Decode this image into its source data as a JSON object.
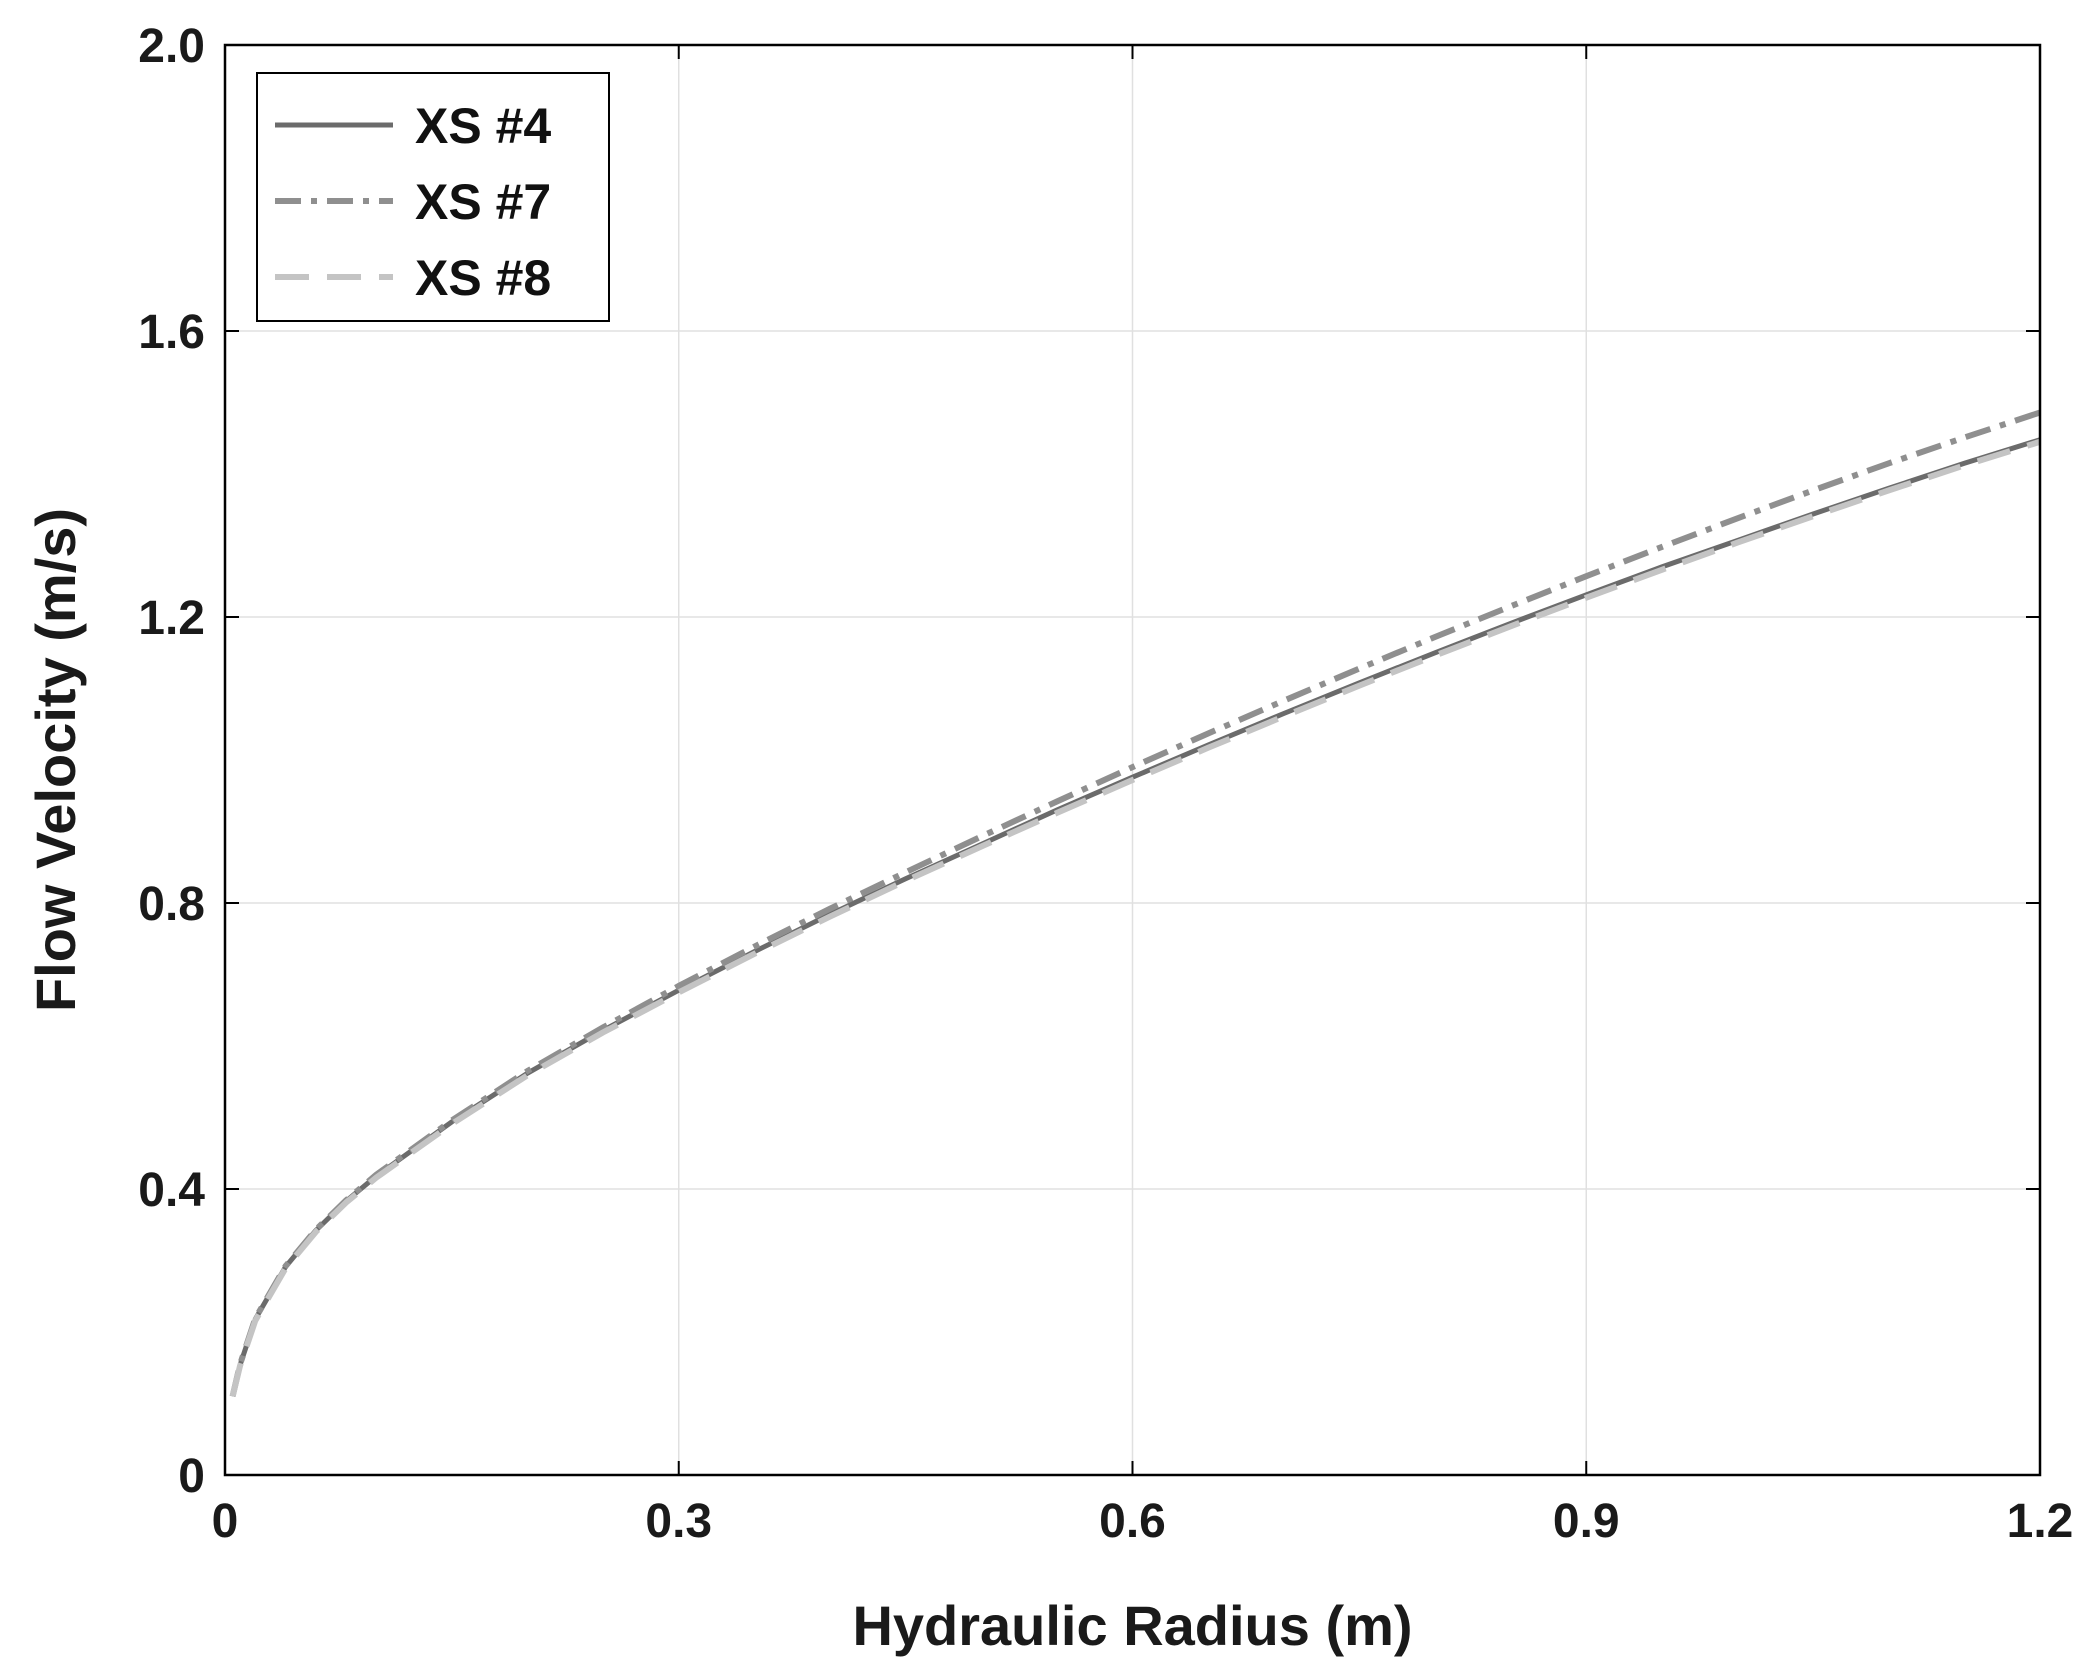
{
  "chart_data": {
    "type": "line",
    "title": "",
    "xlabel": "Hydraulic Radius (m)",
    "ylabel": "Flow Velocity (m/s)",
    "xlim": [
      0,
      1.2
    ],
    "ylim": [
      0,
      2.0
    ],
    "xticks": [
      0,
      0.3,
      0.6,
      0.9,
      1.2
    ],
    "xtick_labels": [
      "0",
      "0.3",
      "0.6",
      "0.9",
      "1.2"
    ],
    "yticks": [
      0,
      0.4,
      0.8,
      1.2,
      1.6,
      2.0
    ],
    "ytick_labels": [
      "0",
      "0.4",
      "0.8",
      "1.2",
      "1.6",
      "2.0"
    ],
    "grid": true,
    "legend_position": "top-left",
    "x": [
      0.005,
      0.01,
      0.02,
      0.04,
      0.06,
      0.08,
      0.1,
      0.15,
      0.2,
      0.25,
      0.3,
      0.35,
      0.4,
      0.45,
      0.5,
      0.55,
      0.6,
      0.65,
      0.7,
      0.75,
      0.8,
      0.85,
      0.9,
      0.95,
      1.0,
      1.05,
      1.1,
      1.15,
      1.2
    ],
    "series": [
      {
        "name": "XS #4",
        "style": "solid",
        "color": "#6b6b6b",
        "values": [
          0.11,
          0.154,
          0.218,
          0.291,
          0.342,
          0.383,
          0.418,
          0.494,
          0.562,
          0.622,
          0.678,
          0.732,
          0.784,
          0.834,
          0.882,
          0.93,
          0.976,
          1.021,
          1.065,
          1.108,
          1.15,
          1.191,
          1.231,
          1.27,
          1.307,
          1.344,
          1.38,
          1.415,
          1.448
        ]
      },
      {
        "name": "XS #7",
        "style": "dash-dot",
        "color": "#8f8f8f",
        "values": [
          0.11,
          0.155,
          0.219,
          0.292,
          0.343,
          0.384,
          0.42,
          0.496,
          0.565,
          0.626,
          0.684,
          0.739,
          0.792,
          0.843,
          0.893,
          0.942,
          0.99,
          1.037,
          1.083,
          1.128,
          1.172,
          1.215,
          1.257,
          1.298,
          1.338,
          1.377,
          1.415,
          1.451,
          1.486
        ]
      },
      {
        "name": "XS #8",
        "style": "dashed",
        "color": "#c4c4c4",
        "values": [
          0.11,
          0.153,
          0.216,
          0.289,
          0.34,
          0.381,
          0.416,
          0.491,
          0.559,
          0.619,
          0.675,
          0.729,
          0.781,
          0.831,
          0.879,
          0.926,
          0.972,
          1.017,
          1.061,
          1.104,
          1.146,
          1.187,
          1.227,
          1.266,
          1.304,
          1.341,
          1.377,
          1.412,
          1.445
        ]
      }
    ]
  },
  "colors": {
    "axis": "#000000",
    "grid": "#e0e0e0",
    "background": "#ffffff"
  }
}
